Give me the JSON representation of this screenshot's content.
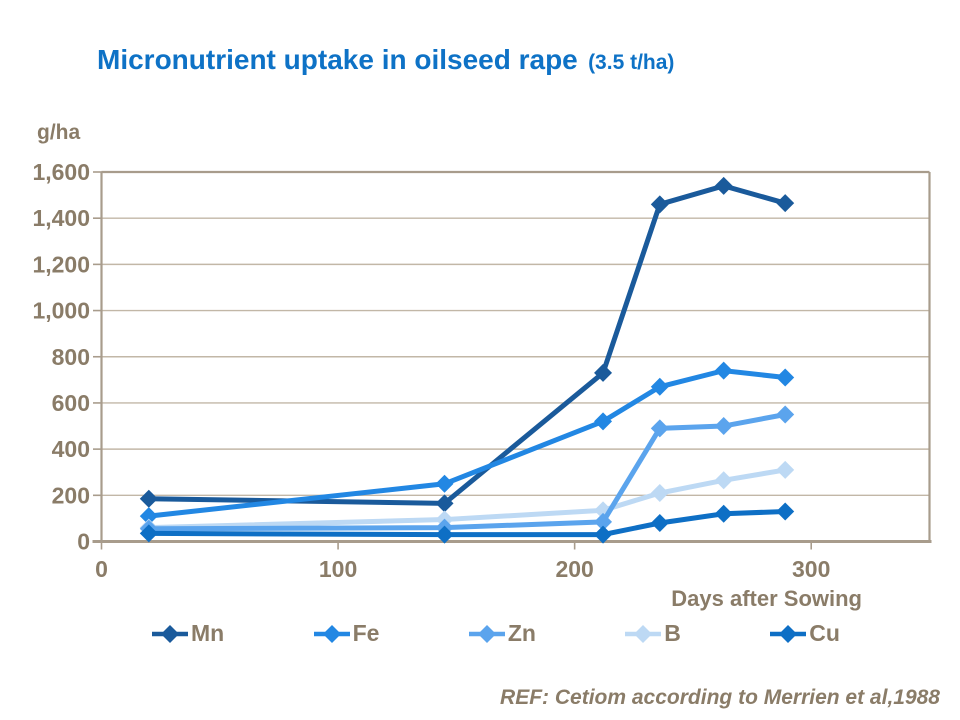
{
  "header": {
    "title": "Micronutrient uptake in oilseed rape",
    "title_suffix": "(3.5 t/ha)"
  },
  "footer": {
    "reference": "REF: Cetiom according to Merrien et al,1988"
  },
  "chart_data": {
    "type": "line",
    "title": "Micronutrient uptake in oilseed rape",
    "title_suffix": "(3.5 t/ha)",
    "xlabel": "Days after Sowing",
    "ylabel": "g/ha",
    "xlim": [
      0,
      350
    ],
    "ylim": [
      0,
      1600
    ],
    "x_ticks": [
      0,
      100,
      200,
      300
    ],
    "x_tick_labels": [
      "0",
      "100",
      "200",
      "300"
    ],
    "y_ticks": [
      0,
      200,
      400,
      600,
      800,
      1000,
      1200,
      1400,
      1600
    ],
    "y_tick_labels": [
      "0",
      "200",
      "400",
      "600",
      "800",
      "1,000",
      "1,200",
      "1,400",
      "1,600"
    ],
    "grid": "horizontal",
    "legend_position": "bottom",
    "marker": "diamond",
    "x": [
      20,
      145,
      212,
      236,
      263,
      289
    ],
    "series": [
      {
        "name": "Mn",
        "color": "#1A5A9B",
        "values": [
          185,
          165,
          730,
          1460,
          1540,
          1465
        ]
      },
      {
        "name": "Fe",
        "color": "#2287E3",
        "values": [
          110,
          250,
          520,
          670,
          740,
          710
        ]
      },
      {
        "name": "Zn",
        "color": "#5BA4ED",
        "values": [
          55,
          60,
          85,
          490,
          500,
          550
        ]
      },
      {
        "name": "B",
        "color": "#BDD9F4",
        "values": [
          60,
          95,
          135,
          210,
          265,
          310
        ]
      },
      {
        "name": "Cu",
        "color": "#0E6FC5",
        "values": [
          35,
          30,
          30,
          80,
          120,
          130
        ]
      }
    ],
    "draw_order": [
      0,
      1,
      3,
      2,
      4
    ],
    "style": {
      "grid_color": "#C2B7A7",
      "border_color": "#A89C8C",
      "tick_label_color": "#8A7C68",
      "title_color": "#0E72C6"
    }
  }
}
